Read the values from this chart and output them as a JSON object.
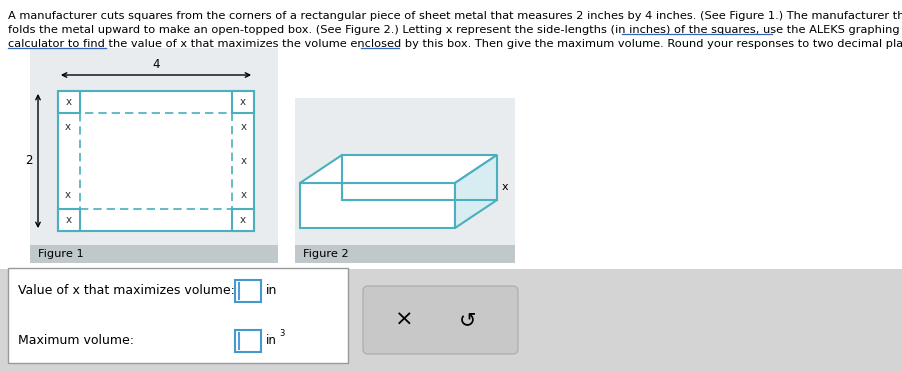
{
  "bg_color": "#d4d4d4",
  "panel_bg": "#e8ecee",
  "label_strip": "#c0c8cc",
  "cyan": "#4aafbe",
  "text_color": "#1a1a1a",
  "link_color": "#3366bb",
  "input_border": "#4499cc",
  "input_cursor": "#5599dd",
  "btn_bg": "#c8c8c8",
  "btn_border": "#aaaaaa",
  "para_line1": "A manufacturer cuts squares from the corners of a rectangular piece of sheet metal that measures 2 inches by 4 inches. (See Figure 1.) The manufacturer then",
  "para_line2": "folds the metal upward to make an open-topped box. (See Figure 2.) Letting x represent the side-lengths (in inches) of the squares, use the ALEKS graphing",
  "para_line3": "calculator to find the value of x that maximizes the volume enclosed by this box. Then give the maximum volume. Round your responses to two decimal places.",
  "fig1_label": "Figure 1",
  "fig2_label": "Figure 2",
  "dim_4": "4",
  "dim_2": "2",
  "x_lbl": "x",
  "value_text": "Value of x that maximizes volume:",
  "volume_text": "Maximum volume:",
  "unit_in": "in",
  "sup3": "3"
}
